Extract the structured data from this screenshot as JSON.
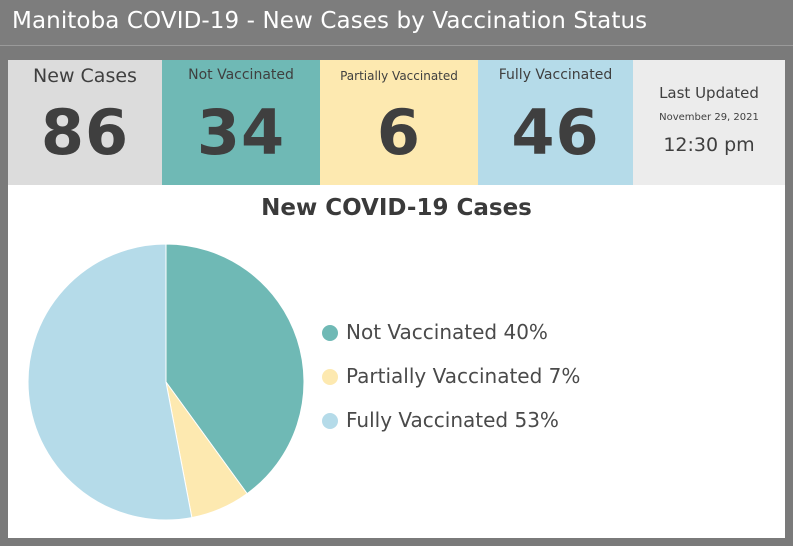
{
  "header": {
    "title": "Manitoba COVID-19 - New Cases by Vaccination Status"
  },
  "tiles": {
    "new_cases": {
      "label": "New Cases",
      "value": "86",
      "color": "#dcdcdc"
    },
    "not_vaccinated": {
      "label": "Not Vaccinated",
      "value": "34",
      "color": "#6fb9b5"
    },
    "partially_vaccinated": {
      "label": "Partially Vaccinated",
      "value": "6",
      "color": "#fde9b0"
    },
    "fully_vaccinated": {
      "label": "Fully Vaccinated",
      "value": "46",
      "color": "#b5dbe9"
    },
    "last_updated": {
      "label": "Last Updated",
      "date": "November 29, 2021",
      "time": "12:30 pm"
    }
  },
  "chart_data": {
    "type": "pie",
    "title": "New COVID-19 Cases",
    "legend_position": "right",
    "slices": [
      {
        "name": "Not Vaccinated",
        "value": 40,
        "label": "40%",
        "color": "#6fb9b5"
      },
      {
        "name": "Partially Vaccinated",
        "value": 7,
        "label": "7%",
        "color": "#fde9b0"
      },
      {
        "name": "Fully Vaccinated",
        "value": 53,
        "label": "53%",
        "color": "#b5dbe9"
      }
    ]
  }
}
